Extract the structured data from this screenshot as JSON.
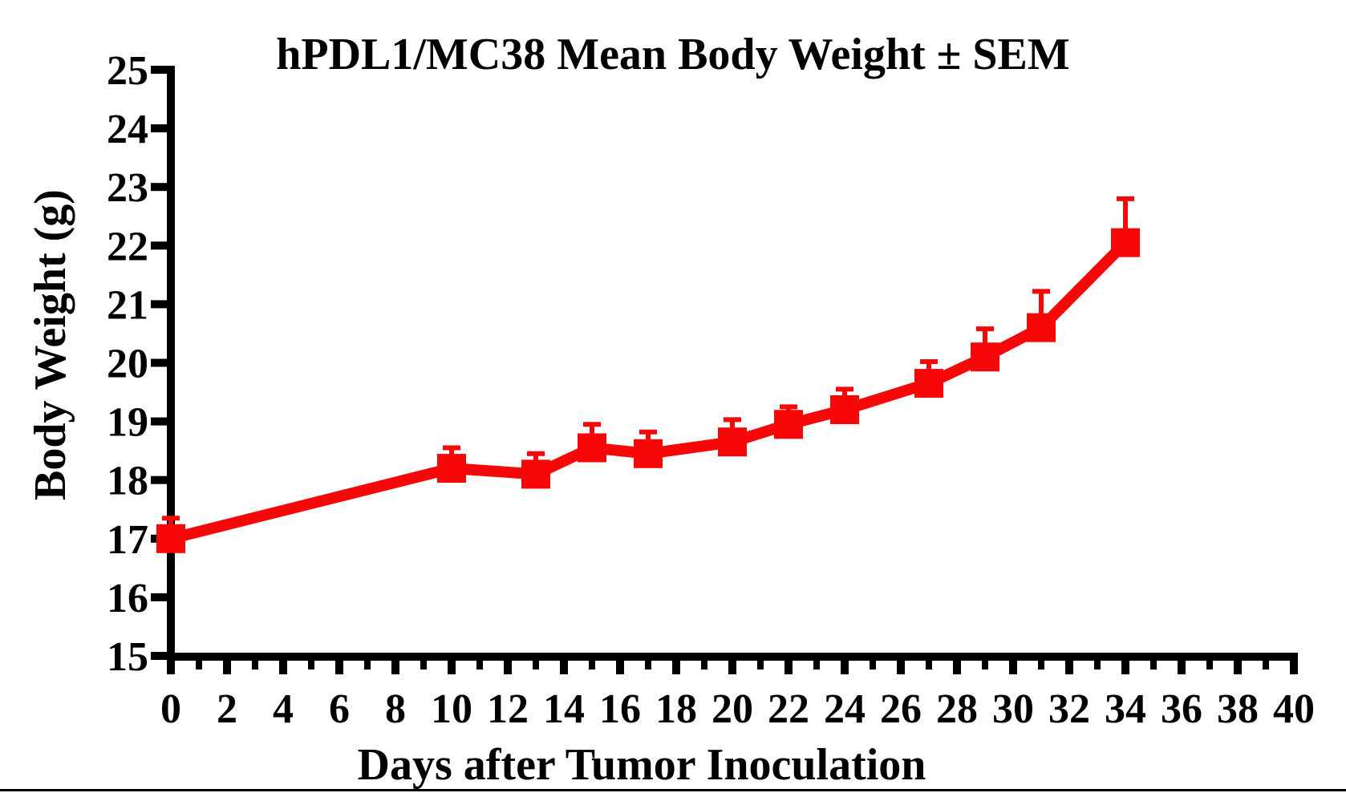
{
  "page": {
    "background_color": "#ffffff"
  },
  "chart_data": {
    "type": "line",
    "title": "hPDL1/MC38 Mean Body Weight ± SEM",
    "xlabel": "Days after Tumor Inoculation",
    "ylabel": "Body Weight (g)",
    "grid": false,
    "legend": false,
    "axis_color": "#000000",
    "series": [
      {
        "name": "hPDL1/MC38 mean body weight",
        "color": "#f70808",
        "marker": "square",
        "error_bars": "SEM (upper whisker only)",
        "points": [
          {
            "day": 0,
            "mean": 17.0,
            "sem": 0.35
          },
          {
            "day": 10,
            "mean": 18.2,
            "sem": 0.35
          },
          {
            "day": 13,
            "mean": 18.1,
            "sem": 0.35
          },
          {
            "day": 15,
            "mean": 18.55,
            "sem": 0.4
          },
          {
            "day": 17,
            "mean": 18.45,
            "sem": 0.37
          },
          {
            "day": 20,
            "mean": 18.65,
            "sem": 0.38
          },
          {
            "day": 22,
            "mean": 18.95,
            "sem": 0.3
          },
          {
            "day": 24,
            "mean": 19.2,
            "sem": 0.35
          },
          {
            "day": 27,
            "mean": 19.65,
            "sem": 0.37
          },
          {
            "day": 29,
            "mean": 20.1,
            "sem": 0.48
          },
          {
            "day": 31,
            "mean": 20.6,
            "sem": 0.62
          },
          {
            "day": 34,
            "mean": 22.05,
            "sem": 0.75
          }
        ]
      }
    ],
    "x_axis": {
      "min": 0,
      "max": 40,
      "major_ticks": [
        0,
        2,
        4,
        6,
        8,
        10,
        12,
        14,
        16,
        18,
        20,
        22,
        24,
        26,
        28,
        30,
        32,
        34,
        36,
        38,
        40
      ],
      "minor_ticks": [
        1,
        3,
        5,
        7,
        9,
        11,
        13,
        15,
        17,
        19,
        21,
        23,
        25,
        27,
        29,
        31,
        33,
        35,
        37,
        39
      ],
      "tick_labels": [
        "0",
        "2",
        "4",
        "6",
        "8",
        "10",
        "12",
        "14",
        "16",
        "18",
        "20",
        "22",
        "24",
        "26",
        "28",
        "30",
        "32",
        "34",
        "36",
        "38",
        "40"
      ]
    },
    "y_axis": {
      "min": 15,
      "max": 25,
      "ticks": [
        15,
        16,
        17,
        18,
        19,
        20,
        21,
        22,
        23,
        24,
        25
      ],
      "tick_labels": [
        "15",
        "16",
        "17",
        "18",
        "19",
        "20",
        "21",
        "22",
        "23",
        "24",
        "25"
      ]
    }
  }
}
